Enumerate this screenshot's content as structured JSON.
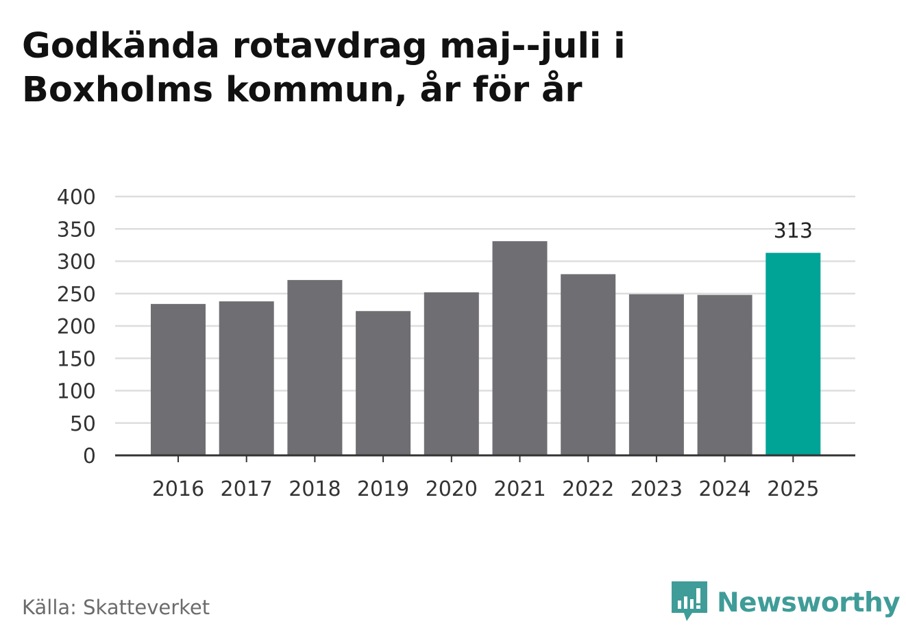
{
  "title_lines": [
    "Godkända rotavdrag maj--juli i",
    "Boxholms kommun, år för år"
  ],
  "source": "Källa: Skatteverket",
  "brand": {
    "name": "Newsworthy",
    "icon": "newsworthy-logo-icon",
    "color": "#3f9c98"
  },
  "chart_data": {
    "type": "bar",
    "categories": [
      "2016",
      "2017",
      "2018",
      "2019",
      "2020",
      "2021",
      "2022",
      "2023",
      "2024",
      "2025"
    ],
    "values": [
      234,
      238,
      271,
      223,
      252,
      331,
      280,
      249,
      248,
      313
    ],
    "ylim": [
      0,
      400
    ],
    "yticks": [
      0,
      50,
      100,
      150,
      200,
      250,
      300,
      350,
      400
    ],
    "highlight_index": 9,
    "data_labels": [
      {
        "index": 9,
        "text": "313"
      }
    ],
    "colors": {
      "bar": "#6f6e73",
      "highlight": "#00a497",
      "grid": "#dddddd",
      "axis": "#333333"
    },
    "grid": true,
    "legend": "none"
  }
}
